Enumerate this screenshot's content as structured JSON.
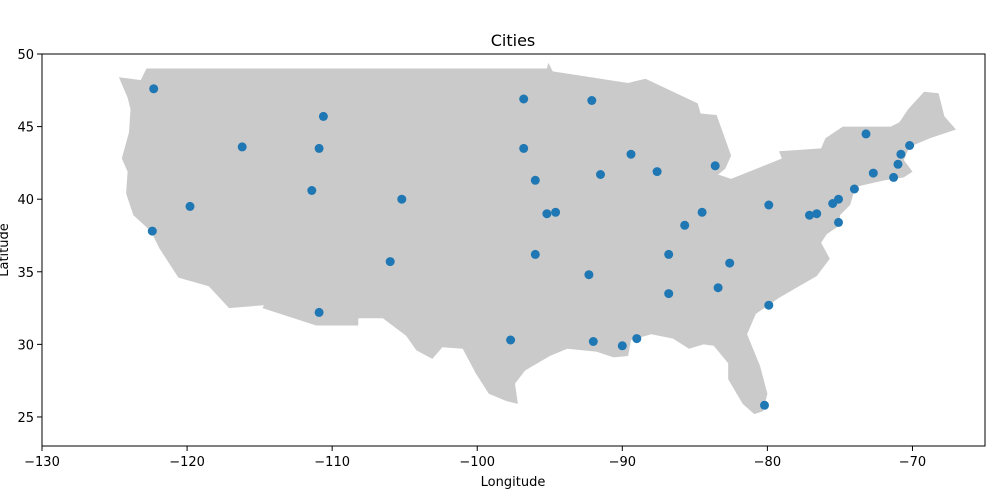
{
  "chart_data": {
    "type": "scatter",
    "title": "Cities",
    "xlabel": "Longitude",
    "ylabel": "Latitude",
    "xlim": [
      -130,
      -65
    ],
    "ylim": [
      23,
      50
    ],
    "xticks": [
      -130,
      -120,
      -110,
      -100,
      -90,
      -80,
      -70
    ],
    "yticks": [
      25,
      30,
      35,
      40,
      45,
      50
    ],
    "grid": false,
    "colors": {
      "points": "#1f77b4",
      "land": "#cacaca",
      "axes": "#000000"
    },
    "basemap": "contiguous-united-states",
    "series": [
      {
        "points": [
          [
            -122.3,
            47.6
          ],
          [
            -122.4,
            37.8
          ],
          [
            -119.8,
            39.5
          ],
          [
            -116.2,
            43.6
          ],
          [
            -110.9,
            43.5
          ],
          [
            -110.6,
            45.7
          ],
          [
            -111.4,
            40.6
          ],
          [
            -105.2,
            40.0
          ],
          [
            -106.0,
            35.7
          ],
          [
            -110.9,
            32.2
          ],
          [
            -96.8,
            46.9
          ],
          [
            -92.1,
            46.8
          ],
          [
            -96.8,
            43.5
          ],
          [
            -96.0,
            41.3
          ],
          [
            -95.2,
            39.0
          ],
          [
            -94.6,
            39.1
          ],
          [
            -96.0,
            36.2
          ],
          [
            -97.7,
            30.3
          ],
          [
            -91.5,
            41.7
          ],
          [
            -89.4,
            43.1
          ],
          [
            -87.6,
            41.9
          ],
          [
            -83.6,
            42.3
          ],
          [
            -92.3,
            34.8
          ],
          [
            -92.0,
            30.2
          ],
          [
            -90.0,
            29.9
          ],
          [
            -89.0,
            30.4
          ],
          [
            -85.7,
            38.2
          ],
          [
            -84.5,
            39.1
          ],
          [
            -86.8,
            36.2
          ],
          [
            -86.8,
            33.5
          ],
          [
            -82.6,
            35.6
          ],
          [
            -83.4,
            33.9
          ],
          [
            -79.9,
            39.6
          ],
          [
            -77.1,
            38.9
          ],
          [
            -76.6,
            39.0
          ],
          [
            -75.5,
            39.7
          ],
          [
            -75.1,
            40.0
          ],
          [
            -75.1,
            38.4
          ],
          [
            -74.0,
            40.7
          ],
          [
            -72.7,
            41.8
          ],
          [
            -71.3,
            41.5
          ],
          [
            -71.0,
            42.4
          ],
          [
            -70.8,
            43.1
          ],
          [
            -70.2,
            43.7
          ],
          [
            -73.2,
            44.5
          ],
          [
            -79.9,
            32.7
          ],
          [
            -80.2,
            25.8
          ]
        ]
      }
    ]
  }
}
